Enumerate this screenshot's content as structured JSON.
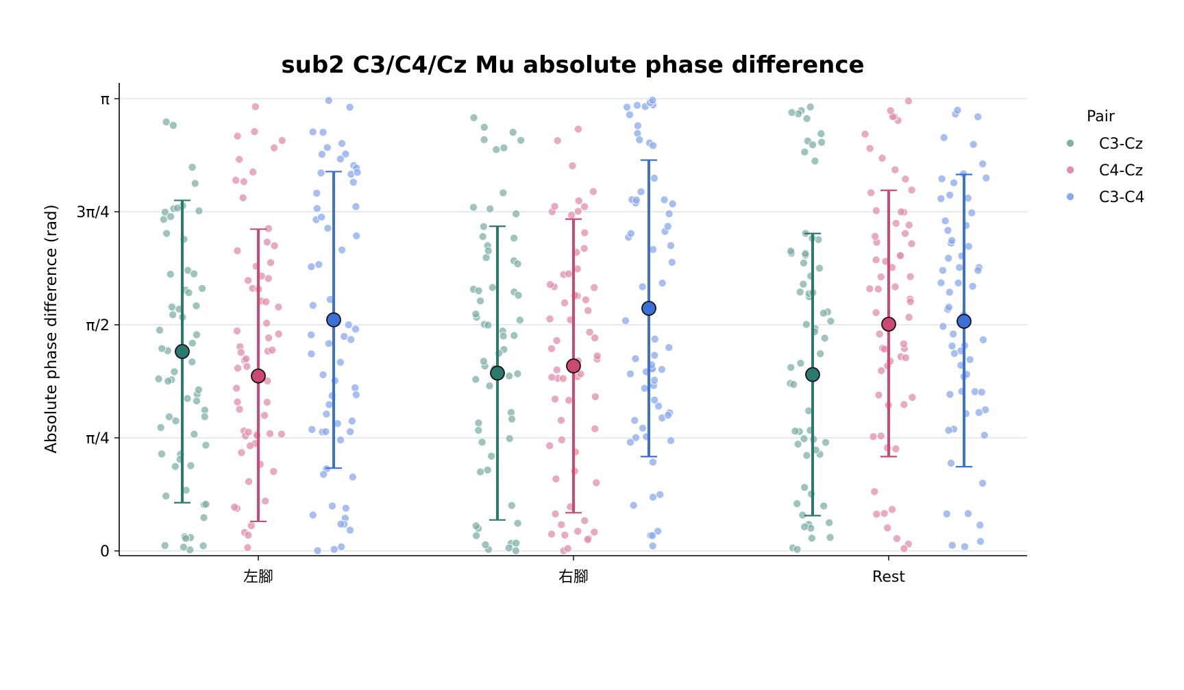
{
  "chart_data": {
    "type": "scatter",
    "title": "sub2 C3/C4/Cz Mu absolute phase difference",
    "xlabel": "",
    "ylabel": "Absolute phase difference (rad)",
    "ylim": [
      0,
      3.14159
    ],
    "y_ticks": [
      {
        "value": 0,
        "label": "0"
      },
      {
        "value": 0.7854,
        "label": "π/4"
      },
      {
        "value": 1.5708,
        "label": "π/2"
      },
      {
        "value": 2.3562,
        "label": "3π/4"
      },
      {
        "value": 3.14159,
        "label": "π"
      }
    ],
    "grid": "horizontal",
    "categories": [
      "左腳",
      "右腳",
      "Rest"
    ],
    "legend": {
      "title": "Pair",
      "placement": "right"
    },
    "series": [
      {
        "name": "C3-Cz",
        "color": "#2a7a70",
        "point_color": "#7fb0a8",
        "mean": [
          1.385,
          1.235,
          1.225
        ],
        "lower": [
          0.335,
          0.215,
          0.245
        ],
        "upper": [
          2.435,
          2.255,
          2.205
        ]
      },
      {
        "name": "C4-Cz",
        "color": "#cc4a70",
        "point_color": "#e08ea8",
        "mean": [
          1.215,
          1.285,
          1.575
        ],
        "lower": [
          0.205,
          0.265,
          0.655
        ],
        "upper": [
          2.235,
          2.305,
          2.505
        ]
      },
      {
        "name": "C3-C4",
        "color": "#3b70d4",
        "point_color": "#8aa8ec",
        "mean": [
          1.605,
          1.685,
          1.595
        ],
        "lower": [
          0.575,
          0.655,
          0.585
        ],
        "upper": [
          2.635,
          2.715,
          2.615
        ]
      }
    ]
  }
}
